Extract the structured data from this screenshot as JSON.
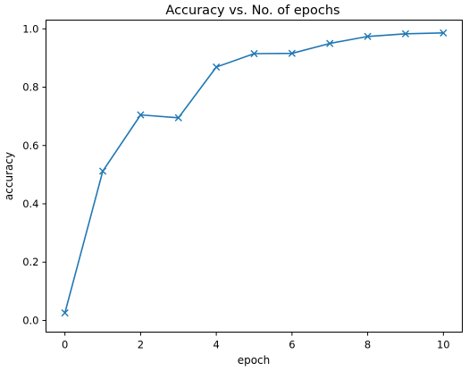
{
  "chart_data": {
    "type": "line",
    "title": "Accuracy vs. No. of epochs",
    "xlabel": "epoch",
    "ylabel": "accuracy",
    "x": [
      0,
      1,
      2,
      3,
      4,
      5,
      6,
      7,
      8,
      9,
      10
    ],
    "y": [
      0.026,
      0.512,
      0.705,
      0.695,
      0.869,
      0.915,
      0.916,
      0.95,
      0.974,
      0.983,
      0.986
    ],
    "xlim": [
      -0.5,
      10.5
    ],
    "ylim": [
      -0.04,
      1.03
    ],
    "xticks": [
      "0",
      "2",
      "4",
      "6",
      "8",
      "10"
    ],
    "yticks": [
      "0.0",
      "0.2",
      "0.4",
      "0.6",
      "0.8",
      "1.0"
    ],
    "marker": "x",
    "line_color": "#1f77b4",
    "grid": false,
    "legend": "none"
  }
}
